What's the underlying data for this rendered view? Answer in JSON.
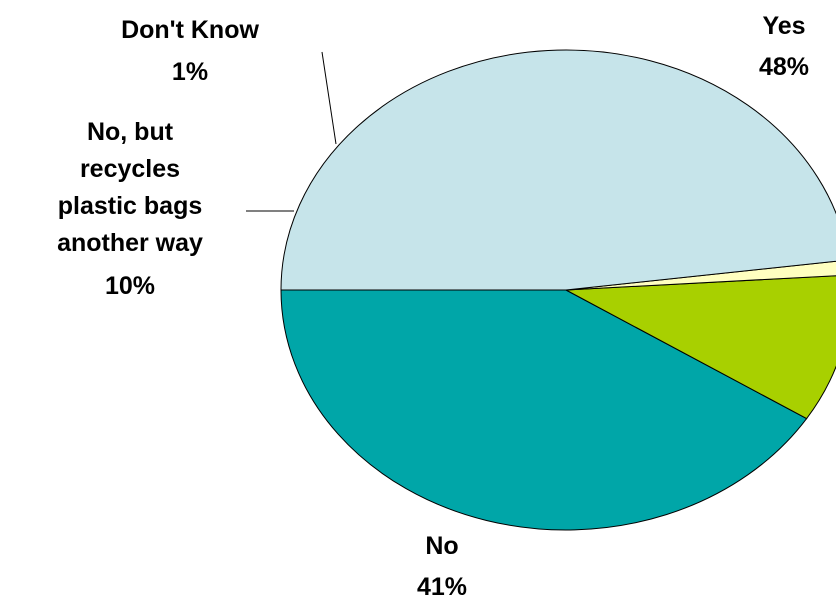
{
  "chart_data": {
    "type": "pie",
    "title": "",
    "slices": [
      {
        "label": "Yes",
        "pct_text": "48%",
        "value": 48,
        "color": "#c6e4ea"
      },
      {
        "label": "No",
        "pct_text": "41%",
        "value": 41,
        "color": "#00a6a8"
      },
      {
        "label_lines": [
          "No, but",
          "recycles",
          "plastic bags",
          "another way"
        ],
        "pct_text": "10%",
        "value": 10,
        "color": "#a8d000"
      },
      {
        "label_lines": [
          "Don't Know"
        ],
        "pct_text": "1%",
        "value": 1,
        "color": "#ffffc0"
      }
    ]
  }
}
